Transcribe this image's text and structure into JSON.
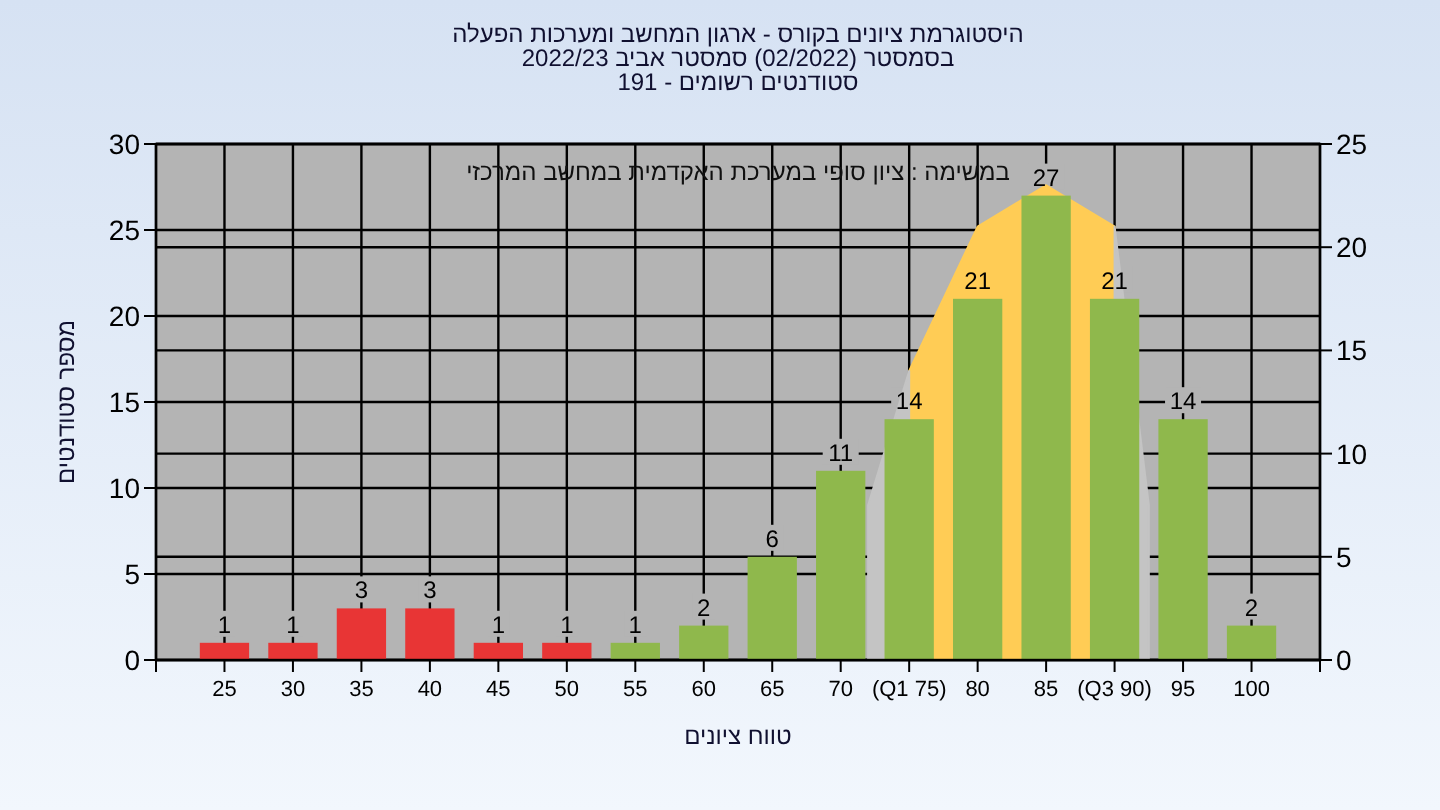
{
  "chart_data": {
    "type": "bar",
    "title": "היסטוגרמת ציונים בקורס - ארגון המחשב ומערכות הפעלה",
    "subtitle": "בסמסטר  (02/2022)  סמסטר אביב 2022/23\nסטודנטים רשומים - 191",
    "xlabel": "טווח ציונים",
    "ylabel": "מספר סטודנטים",
    "annotations": [
      "במשימה : ציון סופי במערכת האקדמית במחשב המרכזי"
    ],
    "xlim": [
      20,
      105
    ],
    "xticks": [
      {
        "value": 20,
        "label": null
      },
      25,
      30,
      35,
      40,
      45,
      50,
      55,
      60,
      65,
      70,
      {
        "value": 75,
        "label": "(Q1 75)"
      },
      80,
      85,
      {
        "value": 90,
        "label": "(Q3 90)"
      },
      95,
      100,
      {
        "value": 105,
        "label": null
      }
    ],
    "ylim": [
      0,
      30
    ],
    "yticks": [
      0,
      5,
      10,
      15,
      20,
      25,
      30
    ],
    "y2lim": [
      0,
      25
    ],
    "y2ticks": [
      0,
      5,
      10,
      15,
      20,
      25
    ],
    "grid": true,
    "series": [
      {
        "type": "area",
        "axis": "y2",
        "color": "#ffcc55",
        "x": [
          75,
          80,
          85,
          90
        ],
        "values": [
          14,
          21,
          23,
          21
        ]
      },
      {
        "type": "area",
        "axis": "y2",
        "color": "#c4c4c4",
        "x": [
          72,
          75
        ],
        "values": [
          7.5,
          14
        ]
      },
      {
        "type": "area",
        "axis": "y2",
        "color": "#c4c4c4",
        "x": [
          90,
          92.5
        ],
        "values": [
          21,
          7.5
        ]
      },
      {
        "x": [
          25,
          30,
          35,
          40,
          45,
          50,
          55,
          60,
          65,
          70,
          75,
          80,
          85,
          90,
          95,
          100
        ],
        "values": [
          1,
          1,
          3,
          3,
          1,
          1,
          1,
          2,
          6,
          11,
          14,
          21,
          27,
          21,
          14,
          2
        ],
        "colors": [
          "#e83535",
          "#e83535",
          "#e83535",
          "#e83535",
          "#e83535",
          "#e83535",
          "#8fb84c",
          "#8fb84c",
          "#8fb84c",
          "#8fb84c",
          "#8fb84c",
          "#8fb84c",
          "#8fb84c",
          "#8fb84c",
          "#8fb84c",
          "#8fb84c"
        ],
        "value_labels": [
          "1",
          "1",
          "3",
          "3",
          "1",
          "1",
          "1",
          "2",
          "6",
          "11",
          "14",
          "21",
          "27",
          "21",
          "14",
          "2"
        ]
      }
    ]
  }
}
